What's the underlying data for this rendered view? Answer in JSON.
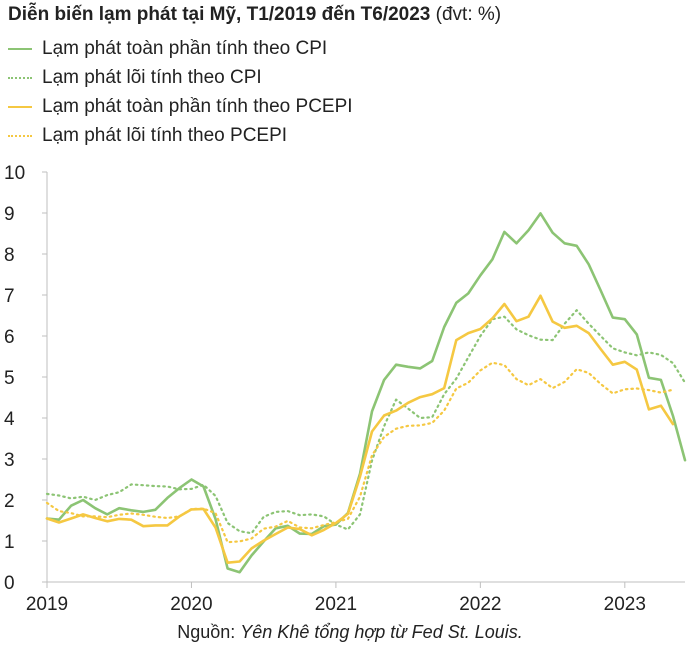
{
  "title": "Diễn biến lạm phát tại Mỹ, T1/2019 đến T6/2023",
  "unit": "(đvt: %)",
  "source_prefix": "Nguồn: ",
  "source_text": "Yên Khê tổng hợp từ Fed St. Louis.",
  "colors": {
    "green": "#8cc474",
    "yellow": "#f5c842",
    "axis": "#bfbfbf",
    "text": "#222222"
  },
  "chart_data": {
    "type": "line",
    "title": "Diễn biến lạm phát tại Mỹ, T1/2019 đến T6/2023",
    "xlabel": "",
    "ylabel": "",
    "ylim": [
      0,
      10
    ],
    "yticks": [
      "0",
      "1",
      "2",
      "3",
      "4",
      "5",
      "6",
      "7",
      "8",
      "9",
      "10"
    ],
    "xticks": [
      "2019",
      "2020",
      "2021",
      "2022",
      "2023"
    ],
    "x_start": "2019-01",
    "x_end": "2023-06",
    "grid": false,
    "legend_position": "top-left",
    "series": [
      {
        "name": "Lạm phát toàn phần tính theo CPI",
        "color": "#8cc474",
        "style": "solid",
        "values": [
          1.55,
          1.52,
          1.86,
          2.0,
          1.8,
          1.65,
          1.8,
          1.75,
          1.71,
          1.76,
          2.05,
          2.29,
          2.5,
          2.33,
          1.54,
          0.33,
          0.24,
          0.65,
          0.99,
          1.31,
          1.37,
          1.18,
          1.17,
          1.36,
          1.4,
          1.68,
          2.64,
          4.16,
          4.93,
          5.3,
          5.25,
          5.21,
          5.39,
          6.22,
          6.81,
          7.04,
          7.48,
          7.87,
          8.54,
          8.26,
          8.58,
          8.99,
          8.52,
          8.26,
          8.2,
          7.75,
          7.11,
          6.45,
          6.41,
          6.04,
          4.98,
          4.93,
          4.05,
          2.97
        ]
      },
      {
        "name": "Lạm phát lõi tính theo CPI",
        "color": "#8cc474",
        "style": "dotted",
        "values": [
          2.15,
          2.11,
          2.04,
          2.08,
          2.0,
          2.12,
          2.19,
          2.38,
          2.36,
          2.34,
          2.33,
          2.26,
          2.27,
          2.37,
          2.1,
          1.44,
          1.24,
          1.19,
          1.59,
          1.71,
          1.73,
          1.63,
          1.65,
          1.6,
          1.4,
          1.28,
          1.65,
          2.96,
          3.8,
          4.45,
          4.23,
          4.0,
          4.02,
          4.58,
          4.96,
          5.48,
          6.0,
          6.41,
          6.47,
          6.16,
          6.02,
          5.91,
          5.9,
          6.3,
          6.63,
          6.3,
          6.0,
          5.7,
          5.6,
          5.53,
          5.6,
          5.54,
          5.34,
          4.86
        ]
      },
      {
        "name": "Lạm phát toàn phần tính theo PCEPI",
        "color": "#f5c842",
        "style": "solid",
        "values": [
          1.55,
          1.45,
          1.55,
          1.65,
          1.56,
          1.48,
          1.54,
          1.52,
          1.36,
          1.38,
          1.38,
          1.6,
          1.77,
          1.78,
          1.33,
          0.47,
          0.5,
          0.82,
          1.01,
          1.17,
          1.33,
          1.29,
          1.14,
          1.27,
          1.44,
          1.66,
          2.57,
          3.67,
          4.06,
          4.18,
          4.37,
          4.51,
          4.58,
          4.73,
          5.9,
          6.07,
          6.17,
          6.43,
          6.78,
          6.36,
          6.47,
          6.98,
          6.35,
          6.2,
          6.25,
          6.07,
          5.68,
          5.3,
          5.37,
          5.18,
          4.21,
          4.3,
          3.85
        ]
      },
      {
        "name": "Lạm phát lõi tính theo PCEPI",
        "color": "#f5c842",
        "style": "dotted",
        "values": [
          1.93,
          1.73,
          1.68,
          1.6,
          1.6,
          1.58,
          1.64,
          1.67,
          1.64,
          1.59,
          1.56,
          1.6,
          1.78,
          1.79,
          1.68,
          0.97,
          0.99,
          1.06,
          1.3,
          1.35,
          1.49,
          1.33,
          1.31,
          1.39,
          1.46,
          1.54,
          2.08,
          3.09,
          3.54,
          3.74,
          3.81,
          3.82,
          3.88,
          4.18,
          4.72,
          4.86,
          5.16,
          5.35,
          5.29,
          4.95,
          4.8,
          4.95,
          4.73,
          4.88,
          5.19,
          5.1,
          4.83,
          4.6,
          4.7,
          4.72,
          4.68,
          4.62,
          4.69
        ]
      }
    ]
  }
}
